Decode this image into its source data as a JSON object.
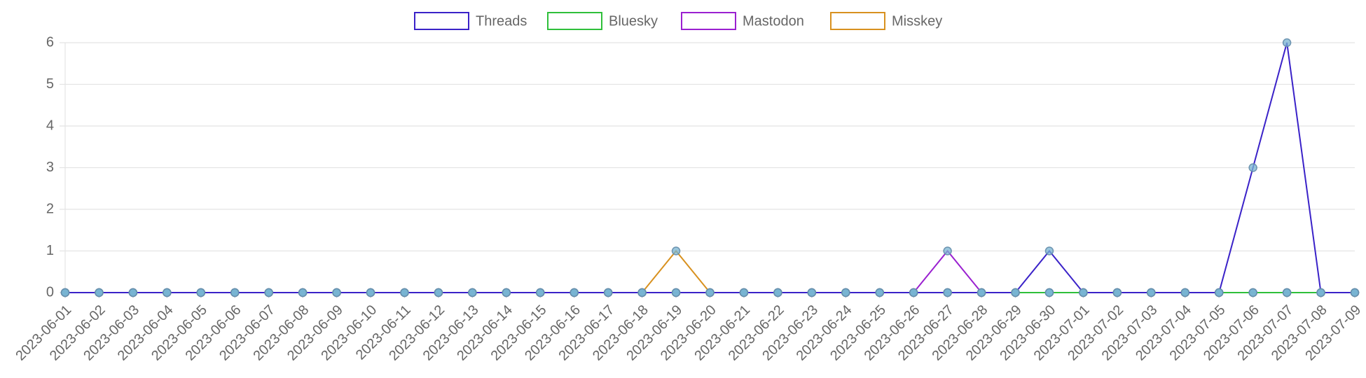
{
  "chart_data": {
    "type": "line",
    "x": [
      "2023-06-01",
      "2023-06-02",
      "2023-06-03",
      "2023-06-04",
      "2023-06-05",
      "2023-06-06",
      "2023-06-07",
      "2023-06-08",
      "2023-06-09",
      "2023-06-10",
      "2023-06-11",
      "2023-06-12",
      "2023-06-13",
      "2023-06-14",
      "2023-06-15",
      "2023-06-16",
      "2023-06-17",
      "2023-06-18",
      "2023-06-19",
      "2023-06-20",
      "2023-06-21",
      "2023-06-22",
      "2023-06-23",
      "2023-06-24",
      "2023-06-25",
      "2023-06-26",
      "2023-06-27",
      "2023-06-28",
      "2023-06-29",
      "2023-06-30",
      "2023-07-01",
      "2023-07-02",
      "2023-07-03",
      "2023-07-04",
      "2023-07-05",
      "2023-07-06",
      "2023-07-07",
      "2023-07-08",
      "2023-07-09"
    ],
    "series": [
      {
        "name": "Threads",
        "color": "#3a22c8",
        "values": [
          0,
          0,
          0,
          0,
          0,
          0,
          0,
          0,
          0,
          0,
          0,
          0,
          0,
          0,
          0,
          0,
          0,
          0,
          0,
          0,
          0,
          0,
          0,
          0,
          0,
          0,
          0,
          0,
          0,
          1,
          0,
          0,
          0,
          0,
          0,
          3,
          6,
          0,
          0
        ]
      },
      {
        "name": "Bluesky",
        "color": "#2fbf3a",
        "values": [
          0,
          0,
          0,
          0,
          0,
          0,
          0,
          0,
          0,
          0,
          0,
          0,
          0,
          0,
          0,
          0,
          0,
          0,
          0,
          0,
          0,
          0,
          0,
          0,
          0,
          0,
          0,
          0,
          0,
          0,
          0,
          0,
          0,
          0,
          0,
          0,
          0,
          0,
          0
        ]
      },
      {
        "name": "Mastodon",
        "color": "#9a20d0",
        "values": [
          0,
          0,
          0,
          0,
          0,
          0,
          0,
          0,
          0,
          0,
          0,
          0,
          0,
          0,
          0,
          0,
          0,
          0,
          0,
          0,
          0,
          0,
          0,
          0,
          0,
          0,
          1,
          0,
          0,
          0,
          0,
          0,
          0,
          0,
          0,
          0,
          0,
          0,
          0
        ]
      },
      {
        "name": "Misskey",
        "color": "#d8911f",
        "values": [
          0,
          0,
          0,
          0,
          0,
          0,
          0,
          0,
          0,
          0,
          0,
          0,
          0,
          0,
          0,
          0,
          0,
          0,
          1,
          0,
          0,
          0,
          0,
          0,
          0,
          0,
          0,
          0,
          0,
          0,
          0,
          0,
          0,
          0,
          0,
          0,
          0,
          0,
          0
        ]
      }
    ],
    "ylim": [
      0,
      6
    ],
    "yticks": [
      0,
      1,
      2,
      3,
      4,
      5,
      6
    ],
    "grid": true,
    "legend": "top"
  }
}
